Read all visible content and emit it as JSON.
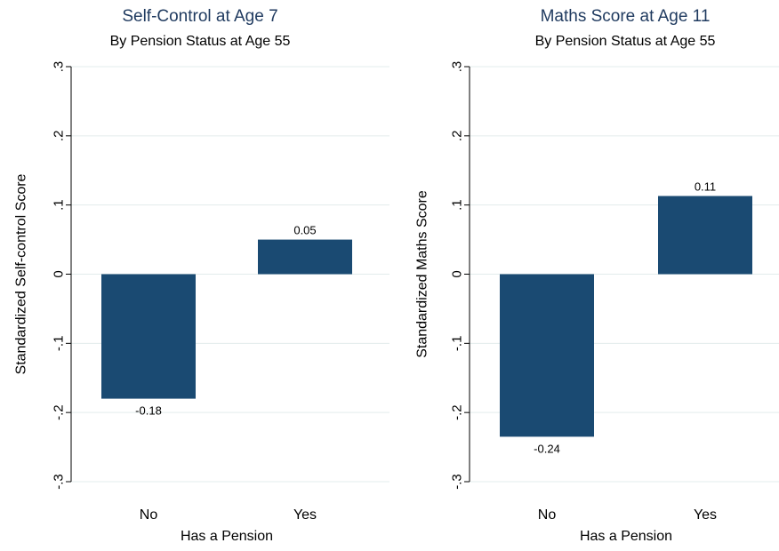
{
  "colors": {
    "bar": "#1a4a72",
    "title": "#1f3a5f",
    "grid": "#e3ecec",
    "axis": "#000000"
  },
  "chart_data": [
    {
      "type": "bar",
      "title": "Self-Control at Age 7",
      "subtitle": "By Pension Status at Age 55",
      "xlabel": "Has a Pension",
      "ylabel": "Standardized Self-control Score",
      "categories": [
        "No",
        "Yes"
      ],
      "values": [
        -0.18,
        0.05
      ],
      "value_labels": [
        "-0.18",
        "0.05"
      ],
      "ylim": [
        -0.3,
        0.3
      ],
      "yticks": [
        -0.3,
        -0.2,
        -0.1,
        0,
        0.1,
        0.2,
        0.3
      ],
      "ytick_labels": [
        "-.3",
        "-.2",
        "-.1",
        "0",
        ".1",
        ".2",
        ".3"
      ],
      "grid": true,
      "legend": "none"
    },
    {
      "type": "bar",
      "title": "Maths Score at Age 11",
      "subtitle": "By Pension Status at Age 55",
      "xlabel": "Has a Pension",
      "ylabel": "Standardized Maths Score",
      "categories": [
        "No",
        "Yes"
      ],
      "values": [
        -0.235,
        0.113
      ],
      "value_labels": [
        "-0.24",
        "0.11"
      ],
      "ylim": [
        -0.3,
        0.3
      ],
      "yticks": [
        -0.3,
        -0.2,
        -0.1,
        0,
        0.1,
        0.2,
        0.3
      ],
      "ytick_labels": [
        "-.3",
        "-.2",
        "-.1",
        "0",
        ".1",
        ".2",
        ".3"
      ],
      "grid": true,
      "legend": "none"
    }
  ]
}
